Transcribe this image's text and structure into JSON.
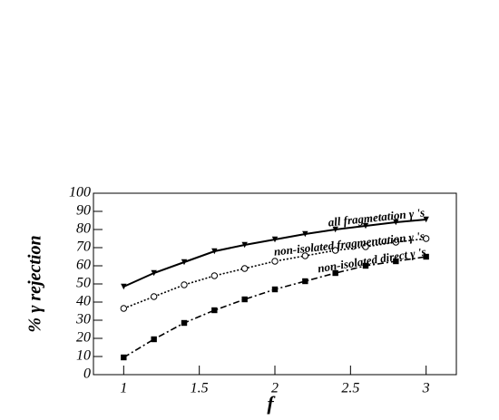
{
  "chart_data": {
    "type": "line",
    "x_label": "f",
    "y_label": "% γ rejection",
    "x": [
      1,
      1.2,
      1.4,
      1.6,
      1.8,
      2,
      2.2,
      2.4,
      2.6,
      2.8,
      3
    ],
    "series": [
      {
        "name": "all fragmetation γ 's",
        "color": "#000000",
        "dash": "solid",
        "marker": "triangle-down",
        "values": [
          48.5,
          56,
          62,
          68,
          71.5,
          74.5,
          77.5,
          80,
          82,
          84,
          85.5
        ]
      },
      {
        "name": "non-isolated fragmentation γ 's",
        "color": "#000000",
        "dash": "dotted",
        "marker": "circle-open",
        "values": [
          36.5,
          43,
          49.5,
          54.5,
          58.5,
          62.5,
          65.5,
          68.5,
          70.5,
          73,
          75
        ]
      },
      {
        "name": "non-isolated direct γ 's",
        "color": "#000000",
        "dash": "dashdot",
        "marker": "square",
        "values": [
          9.5,
          19.5,
          28.5,
          35.5,
          41.5,
          47,
          51.5,
          56,
          60,
          62.5,
          65
        ]
      }
    ],
    "xlim": [
      0.8,
      3.2
    ],
    "xticks": [
      1,
      1.5,
      2,
      2.5,
      3
    ],
    "ylim": [
      0,
      100
    ],
    "yticks": [
      0,
      10,
      20,
      30,
      40,
      50,
      60,
      70,
      80,
      90,
      100
    ],
    "grid": false
  }
}
